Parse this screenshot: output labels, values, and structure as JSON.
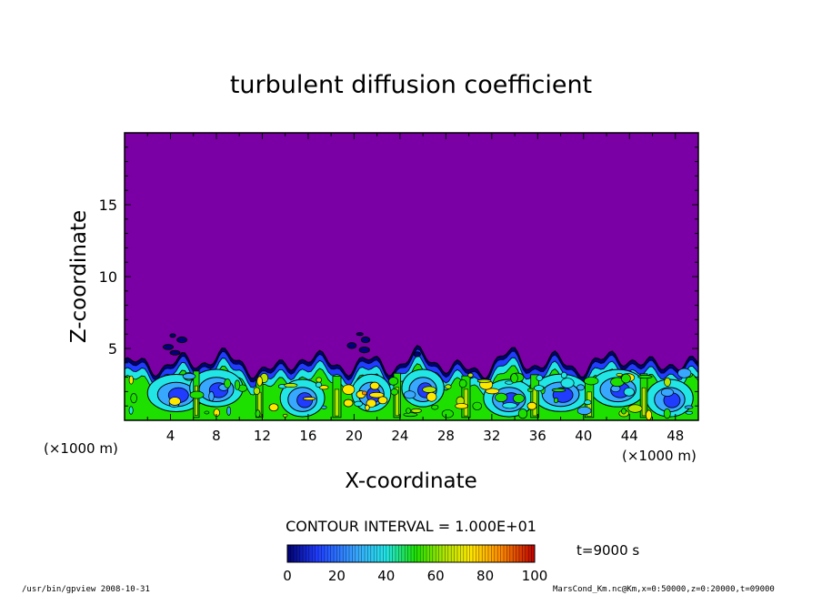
{
  "chart_data": {
    "type": "heatmap",
    "title": "turbulent diffusion coefficient",
    "xlabel": "X-coordinate",
    "ylabel": "Z-coordinate",
    "x_unit": "(×1000 m)",
    "x_unit_right": "(×1000 m)",
    "xlim": [
      0,
      50
    ],
    "ylim": [
      0,
      20
    ],
    "x_ticks": [
      4,
      8,
      12,
      16,
      20,
      24,
      28,
      32,
      36,
      40,
      44,
      48
    ],
    "y_ticks": [
      5,
      10,
      15
    ],
    "contour_interval_text": "CONTOUR INTERVAL = 1.000E+01",
    "time_text": "t=9000 s",
    "colorbar": {
      "range": [
        0,
        100
      ],
      "ticks": [
        0,
        20,
        40,
        60,
        80,
        100
      ]
    },
    "background_value_color": "#7a00a5",
    "mixed_layer_top_z": 4.2,
    "cell_centers_x": [
      4.5,
      8.0,
      15.5,
      21.5,
      26.0,
      33.5,
      38.0,
      43.0,
      47.5
    ],
    "colors": {
      "purple": "#7a00a5",
      "navy": "#000080",
      "blue": "#1f3cff",
      "lightblue": "#38a8ff",
      "cyan": "#22e6e6",
      "green": "#1ee000",
      "yellowgreen": "#b4e600",
      "yellow": "#ffe800",
      "orange": "#ff8c00",
      "red": "#e01010"
    }
  },
  "footer": {
    "left": "/usr/bin/gpview   2008-10-31",
    "right": "MarsCond_Km.nc@Km,x=0:50000,z=0:20000,t=09000"
  }
}
